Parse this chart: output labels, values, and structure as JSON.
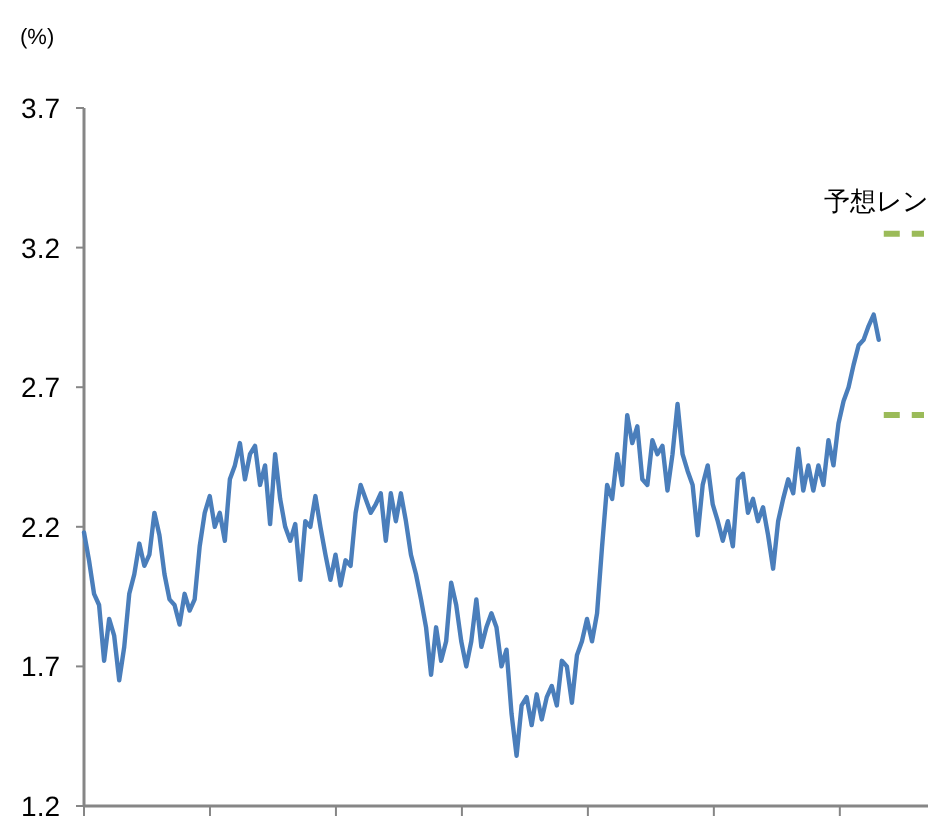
{
  "chart_data": {
    "type": "line",
    "ylabel": "(%)",
    "categories": [
      null,
      null,
      null,
      null,
      null,
      null,
      null,
      null,
      null,
      null,
      null,
      null,
      null,
      null,
      null,
      null,
      null,
      null,
      null,
      null,
      null,
      null,
      null,
      null,
      null,
      null,
      null,
      null,
      null,
      null,
      null,
      null,
      null,
      null,
      null,
      null,
      null,
      null,
      null,
      null,
      null,
      null,
      null,
      null,
      null,
      null,
      null,
      null,
      null,
      null,
      null,
      null,
      null,
      null,
      null,
      null,
      null,
      null,
      null,
      null,
      null,
      null,
      null,
      null,
      null,
      null,
      null,
      null,
      null,
      null,
      null,
      null,
      null,
      null,
      null,
      null,
      null,
      null,
      null,
      null,
      null,
      null,
      null,
      null,
      null,
      null,
      null,
      null,
      null,
      null,
      null,
      null,
      null,
      null,
      null,
      null,
      null,
      null,
      null,
      null,
      null,
      null,
      null,
      null,
      null,
      null,
      null,
      null,
      null,
      null,
      null,
      null,
      null,
      null,
      null,
      null,
      null,
      null,
      null,
      null,
      null,
      null,
      null,
      null,
      null,
      null,
      null,
      null,
      null,
      null,
      null,
      null,
      null,
      null,
      null,
      null,
      null,
      null,
      null,
      null,
      null,
      null,
      null,
      null,
      null,
      null,
      null,
      null,
      null,
      null,
      null,
      null,
      null,
      null,
      null,
      null,
      null,
      null,
      null,
      null,
      null,
      null,
      null,
      null,
      null,
      null,
      null,
      null
    ],
    "series": [
      {
        "color": "#4a7ebb",
        "values": [
          2.18,
          2.08,
          1.96,
          1.92,
          1.72,
          1.87,
          1.81,
          1.65,
          1.77,
          1.96,
          2.03,
          2.14,
          2.06,
          2.1,
          2.25,
          2.17,
          2.03,
          1.94,
          1.92,
          1.85,
          1.96,
          1.9,
          1.94,
          2.13,
          2.25,
          2.31,
          2.2,
          2.25,
          2.15,
          2.37,
          2.42,
          2.5,
          2.37,
          2.46,
          2.49,
          2.35,
          2.42,
          2.21,
          2.46,
          2.3,
          2.2,
          2.15,
          2.21,
          2.01,
          2.22,
          2.2,
          2.31,
          2.2,
          2.1,
          2.01,
          2.1,
          1.99,
          2.08,
          2.06,
          2.25,
          2.35,
          2.3,
          2.25,
          2.28,
          2.32,
          2.15,
          2.32,
          2.22,
          2.32,
          2.22,
          2.1,
          2.03,
          1.94,
          1.84,
          1.67,
          1.84,
          1.72,
          1.79,
          2.0,
          1.92,
          1.79,
          1.7,
          1.79,
          1.94,
          1.77,
          1.84,
          1.89,
          1.84,
          1.7,
          1.76,
          1.53,
          1.38,
          1.56,
          1.59,
          1.49,
          1.6,
          1.51,
          1.59,
          1.63,
          1.56,
          1.72,
          1.7,
          1.57,
          1.74,
          1.79,
          1.87,
          1.79,
          1.89,
          2.13,
          2.35,
          2.3,
          2.46,
          2.35,
          2.6,
          2.5,
          2.56,
          2.37,
          2.35,
          2.51,
          2.46,
          2.49,
          2.33,
          2.46,
          2.64,
          2.46,
          2.4,
          2.35,
          2.17,
          2.35,
          2.42,
          2.28,
          2.22,
          2.15,
          2.22,
          2.13,
          2.37,
          2.39,
          2.25,
          2.3,
          2.22,
          2.27,
          2.17,
          2.05,
          2.22,
          2.3,
          2.37,
          2.32,
          2.48,
          2.33,
          2.42,
          2.33,
          2.42,
          2.35,
          2.51,
          2.42,
          2.57,
          2.65,
          2.7,
          2.78,
          2.85,
          2.87,
          2.92,
          2.96,
          2.87,
          null,
          null,
          null,
          null,
          null,
          null,
          null,
          null,
          null
        ]
      },
      {
        "name": "予想レン",
        "color": "#9bbb59",
        "line_style": "dashed",
        "values": [
          null,
          null,
          null,
          null,
          null,
          null,
          null,
          null,
          null,
          null,
          null,
          null,
          null,
          null,
          null,
          null,
          null,
          null,
          null,
          null,
          null,
          null,
          null,
          null,
          null,
          null,
          null,
          null,
          null,
          null,
          null,
          null,
          null,
          null,
          null,
          null,
          null,
          null,
          null,
          null,
          null,
          null,
          null,
          null,
          null,
          null,
          null,
          null,
          null,
          null,
          null,
          null,
          null,
          null,
          null,
          null,
          null,
          null,
          null,
          null,
          null,
          null,
          null,
          null,
          null,
          null,
          null,
          null,
          null,
          null,
          null,
          null,
          null,
          null,
          null,
          null,
          null,
          null,
          null,
          null,
          null,
          null,
          null,
          null,
          null,
          null,
          null,
          null,
          null,
          null,
          null,
          null,
          null,
          null,
          null,
          null,
          null,
          null,
          null,
          null,
          null,
          null,
          null,
          null,
          null,
          null,
          null,
          null,
          null,
          null,
          null,
          null,
          null,
          null,
          null,
          null,
          null,
          null,
          null,
          null,
          null,
          null,
          null,
          null,
          null,
          null,
          null,
          null,
          null,
          null,
          null,
          null,
          null,
          null,
          null,
          null,
          null,
          null,
          null,
          null,
          null,
          null,
          null,
          null,
          null,
          null,
          null,
          null,
          null,
          null,
          null,
          null,
          null,
          null,
          null,
          null,
          null,
          null,
          null,
          3.25,
          3.25,
          3.25,
          3.25,
          3.25,
          3.25,
          3.25,
          3.25,
          3.25
        ]
      },
      {
        "color": "#9bbb59",
        "line_style": "dashed",
        "values": [
          null,
          null,
          null,
          null,
          null,
          null,
          null,
          null,
          null,
          null,
          null,
          null,
          null,
          null,
          null,
          null,
          null,
          null,
          null,
          null,
          null,
          null,
          null,
          null,
          null,
          null,
          null,
          null,
          null,
          null,
          null,
          null,
          null,
          null,
          null,
          null,
          null,
          null,
          null,
          null,
          null,
          null,
          null,
          null,
          null,
          null,
          null,
          null,
          null,
          null,
          null,
          null,
          null,
          null,
          null,
          null,
          null,
          null,
          null,
          null,
          null,
          null,
          null,
          null,
          null,
          null,
          null,
          null,
          null,
          null,
          null,
          null,
          null,
          null,
          null,
          null,
          null,
          null,
          null,
          null,
          null,
          null,
          null,
          null,
          null,
          null,
          null,
          null,
          null,
          null,
          null,
          null,
          null,
          null,
          null,
          null,
          null,
          null,
          null,
          null,
          null,
          null,
          null,
          null,
          null,
          null,
          null,
          null,
          null,
          null,
          null,
          null,
          null,
          null,
          null,
          null,
          null,
          null,
          null,
          null,
          null,
          null,
          null,
          null,
          null,
          null,
          null,
          null,
          null,
          null,
          null,
          null,
          null,
          null,
          null,
          null,
          null,
          null,
          null,
          null,
          null,
          null,
          null,
          null,
          null,
          null,
          null,
          null,
          null,
          null,
          null,
          null,
          null,
          null,
          null,
          null,
          null,
          null,
          null,
          2.6,
          2.6,
          2.6,
          2.6,
          2.6,
          2.6,
          2.6,
          2.6,
          2.6
        ]
      }
    ],
    "ylim": [
      1.2,
      3.7
    ],
    "yticks": [
      1.2,
      1.7,
      2.2,
      2.7,
      3.2,
      3.7
    ],
    "tick_labels": "y"
  }
}
